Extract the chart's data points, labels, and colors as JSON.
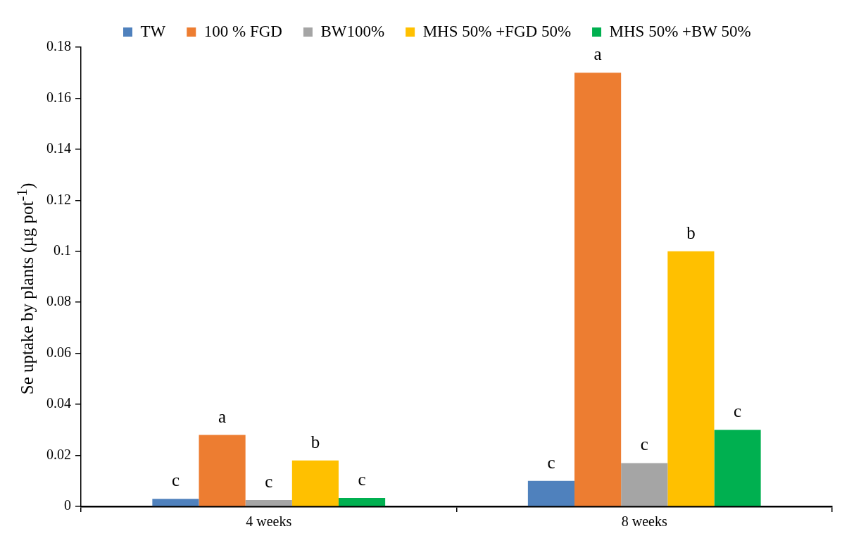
{
  "chart_data": {
    "type": "bar",
    "ylabel": "Se uptake by plants (µg pot$^{-1}$)",
    "categories": [
      "4 weeks",
      "8 weeks"
    ],
    "series": [
      {
        "name": "TW",
        "color": "#4f81bd",
        "values": [
          0.003,
          0.01
        ],
        "value_labels": [
          "c",
          "c"
        ]
      },
      {
        "name": "100 % FGD",
        "color": "#ed7d31",
        "values": [
          0.028,
          0.17
        ],
        "value_labels": [
          "a",
          "a"
        ]
      },
      {
        "name": "BW100%",
        "color": "#a5a5a5",
        "values": [
          0.0025,
          0.017
        ],
        "value_labels": [
          "c",
          "c"
        ]
      },
      {
        "name": "MHS 50% +FGD 50%",
        "color": "#ffc000",
        "values": [
          0.018,
          0.1
        ],
        "value_labels": [
          "b",
          "b"
        ]
      },
      {
        "name": "MHS 50% +BW 50%",
        "color": "#00b050",
        "values": [
          0.0033,
          0.03
        ],
        "value_labels": [
          "c",
          "c"
        ]
      }
    ],
    "ylim": [
      0,
      0.18
    ],
    "yticks": [
      0,
      0.02,
      0.04,
      0.06,
      0.08,
      0.1,
      0.12,
      0.14,
      0.16,
      0.18
    ],
    "grid": false,
    "legend": "top"
  }
}
